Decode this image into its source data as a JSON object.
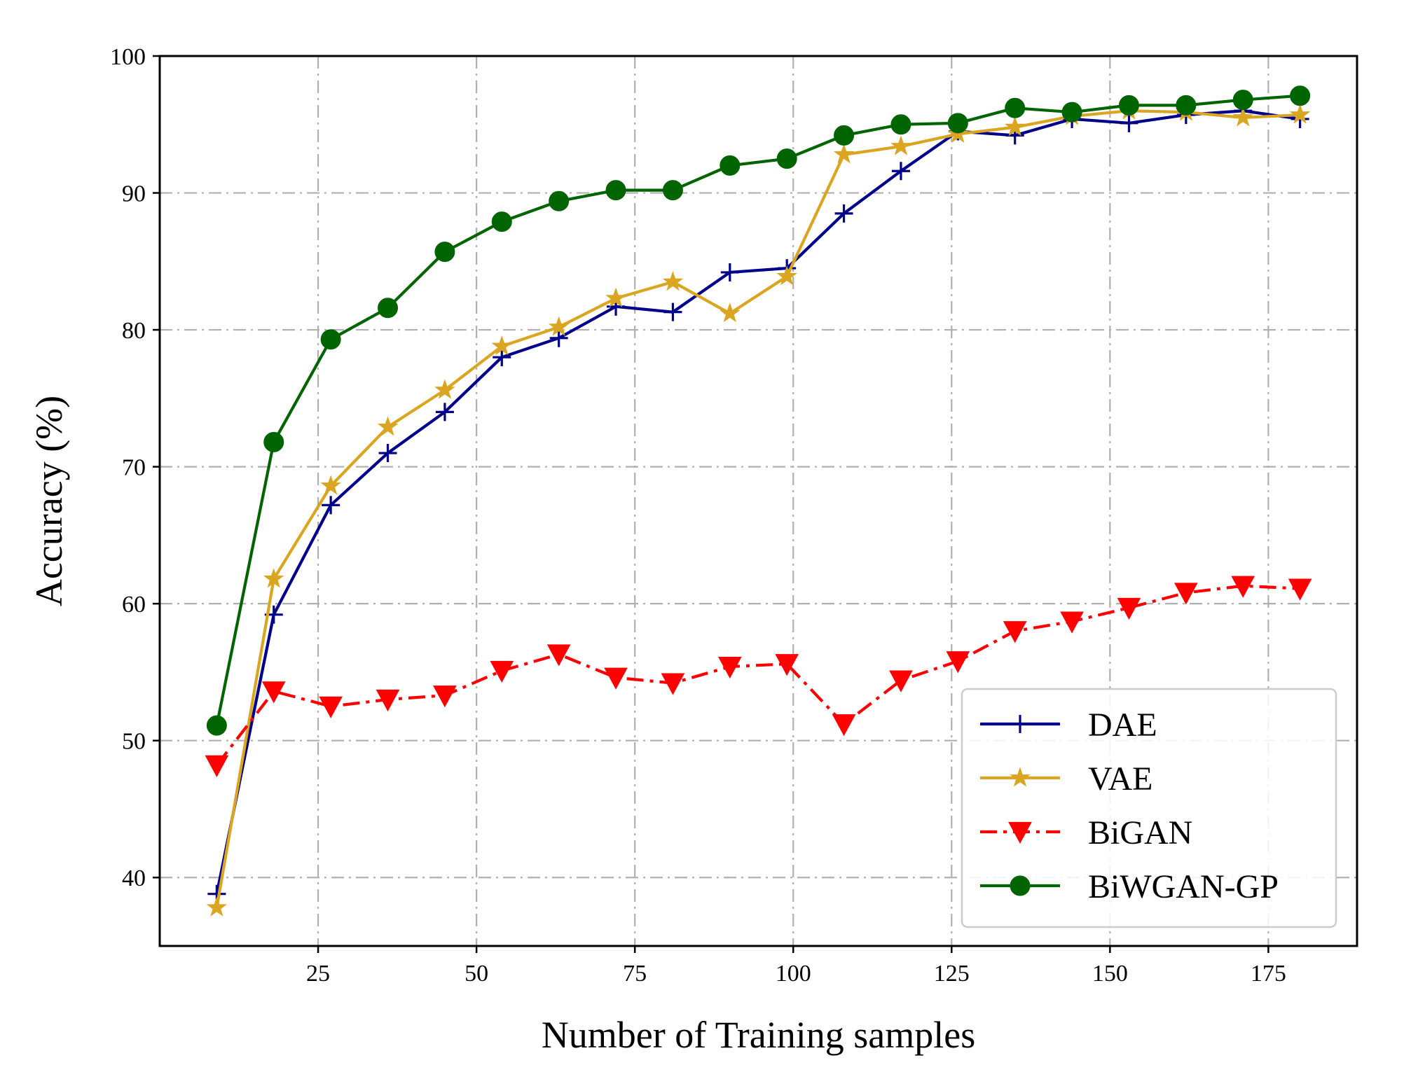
{
  "chart_data": {
    "type": "line",
    "title": "",
    "xlabel": "Number of Training samples",
    "ylabel": "Accuracy (%)",
    "xlim": [
      0,
      189
    ],
    "ylim": [
      35,
      100
    ],
    "xticks": [
      25,
      50,
      75,
      100,
      125,
      150,
      175
    ],
    "yticks": [
      40,
      50,
      60,
      70,
      80,
      90,
      100
    ],
    "grid": true,
    "legend_position": "lower-right",
    "x": [
      9,
      18,
      27,
      36,
      45,
      54,
      63,
      72,
      81,
      90,
      99,
      108,
      117,
      126,
      135,
      144,
      153,
      162,
      171,
      180
    ],
    "series": [
      {
        "name": "DAE",
        "color": "#00008B",
        "marker": "plus",
        "linestyle": "solid",
        "values": [
          38.8,
          59.2,
          67.2,
          71.0,
          74.0,
          78.0,
          79.4,
          81.7,
          81.3,
          84.2,
          84.5,
          88.5,
          91.6,
          94.5,
          94.2,
          95.4,
          95.1,
          95.7,
          96.0,
          95.4
        ]
      },
      {
        "name": "VAE",
        "color": "#DAA520",
        "marker": "star",
        "linestyle": "solid",
        "values": [
          37.8,
          61.8,
          68.6,
          72.9,
          75.6,
          78.8,
          80.2,
          82.3,
          83.5,
          81.2,
          83.9,
          92.8,
          93.4,
          94.3,
          94.8,
          95.6,
          96.0,
          95.9,
          95.5,
          95.7
        ]
      },
      {
        "name": "BiGAN",
        "color": "#FF0000",
        "marker": "triangle-down",
        "linestyle": "dashdot",
        "values": [
          48.2,
          53.6,
          52.5,
          53.0,
          53.3,
          55.1,
          56.3,
          54.6,
          54.2,
          55.4,
          55.6,
          51.2,
          54.4,
          55.8,
          58.0,
          58.7,
          59.7,
          60.8,
          61.3,
          61.1
        ]
      },
      {
        "name": "BiWGAN-GP",
        "color": "#006400",
        "marker": "circle",
        "linestyle": "solid",
        "values": [
          51.1,
          71.8,
          79.3,
          81.6,
          85.7,
          87.9,
          89.4,
          90.2,
          90.2,
          92.0,
          92.5,
          94.2,
          95.0,
          95.1,
          96.2,
          95.9,
          96.4,
          96.4,
          96.8,
          97.1
        ]
      }
    ]
  }
}
